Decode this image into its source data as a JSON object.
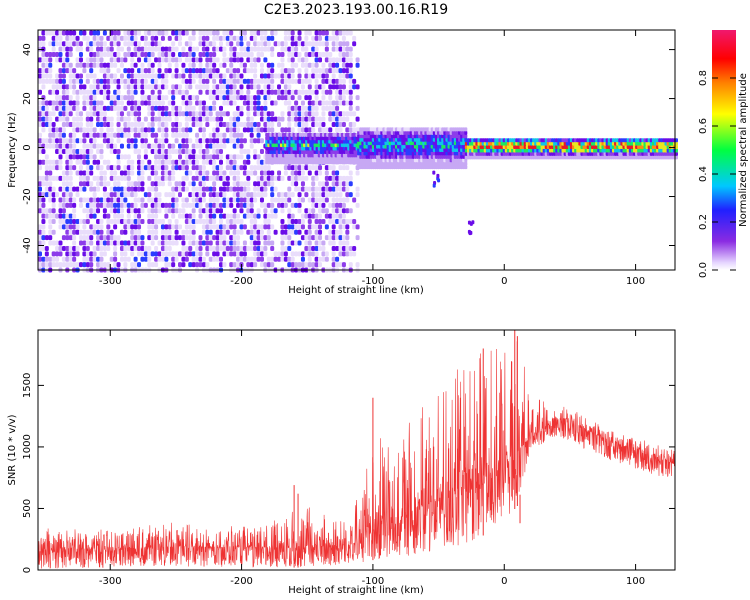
{
  "title": "C2E3.2023.193.00.16.R19",
  "colors": {
    "snr_line": "#ee3333",
    "spectrum_weak": "#cdb4f5",
    "spectrum_mid": "#7a20ee",
    "spectrum_strong": "#20d8e0",
    "spectrum_peak": "#e81a28"
  },
  "chart_data": [
    {
      "type": "heatmap",
      "xlabel": "Height of straight line (km)",
      "ylabel": "Frequency (Hz)",
      "xlim": [
        -355,
        130
      ],
      "ylim": [
        -50,
        48
      ],
      "xticks": [
        -300,
        -200,
        -100,
        0,
        100
      ],
      "yticks": [
        -40,
        -20,
        0,
        20,
        40
      ],
      "colorbar": {
        "label": "Normalized spectral amplitude",
        "range": [
          0,
          1
        ],
        "ticks": [
          0.0,
          0.2,
          0.4,
          0.6,
          0.8
        ],
        "colormap": "rainbow (white-purple-blue-cyan-green-yellow-orange-red-magenta)"
      },
      "features": [
        {
          "name": "broadband noise",
          "x_range": [
            -355,
            -112
          ],
          "y_range": [
            -50,
            48
          ],
          "amplitude": 0.15
        },
        {
          "name": "band",
          "x_range": [
            -182,
            -112
          ],
          "y_center": 1,
          "half_width": 4,
          "amplitude": 0.45
        },
        {
          "name": "band",
          "x_range": [
            -112,
            -30
          ],
          "y_center": 1,
          "half_width": 6,
          "amplitude": 0.45
        },
        {
          "name": "band",
          "x_range": [
            -30,
            130
          ],
          "y_center": 0.5,
          "half_width": 2,
          "amplitude": 0.85
        },
        {
          "name": "isolated patch",
          "x": -27,
          "y": -33,
          "amplitude": 0.15
        },
        {
          "name": "isolated patch",
          "x": -53,
          "y": -13,
          "amplitude": 0.15
        }
      ]
    },
    {
      "type": "line",
      "xlabel": "Height of straight line (km)",
      "ylabel": "SNR (10 * v/v)",
      "xlim": [
        -355,
        130
      ],
      "ylim": [
        0,
        1950
      ],
      "xticks": [
        -300,
        -200,
        -100,
        0,
        100
      ],
      "yticks": [
        0,
        500,
        1000,
        1500
      ],
      "envelope": {
        "x": [
          -355,
          -300,
          -250,
          -200,
          -150,
          -115,
          -100,
          -80,
          -60,
          -40,
          -20,
          0,
          10,
          20,
          40,
          60,
          80,
          100,
          130
        ],
        "mean": [
          170,
          175,
          190,
          185,
          180,
          210,
          320,
          420,
          520,
          620,
          760,
          880,
          960,
          1080,
          1230,
          1150,
          1050,
          970,
          860
        ],
        "max": [
          340,
          330,
          390,
          350,
          520,
          480,
          1040,
          1200,
          1350,
          1600,
          1750,
          1850,
          1950,
          1400,
          1380,
          1260,
          1140,
          1080,
          970
        ],
        "min": [
          10,
          20,
          30,
          20,
          20,
          40,
          80,
          100,
          140,
          180,
          250,
          400,
          520,
          980,
          1080,
          990,
          900,
          820,
          720
        ]
      },
      "spikes": [
        {
          "x": -160,
          "y": 690
        },
        {
          "x": -157,
          "y": 620
        },
        {
          "x": -100,
          "y": 1400
        },
        {
          "x": -16,
          "y": 1800
        },
        {
          "x": 8,
          "y": 1950
        },
        {
          "x": 10,
          "y": 1900
        },
        {
          "x": 12,
          "y": 380
        }
      ]
    }
  ]
}
